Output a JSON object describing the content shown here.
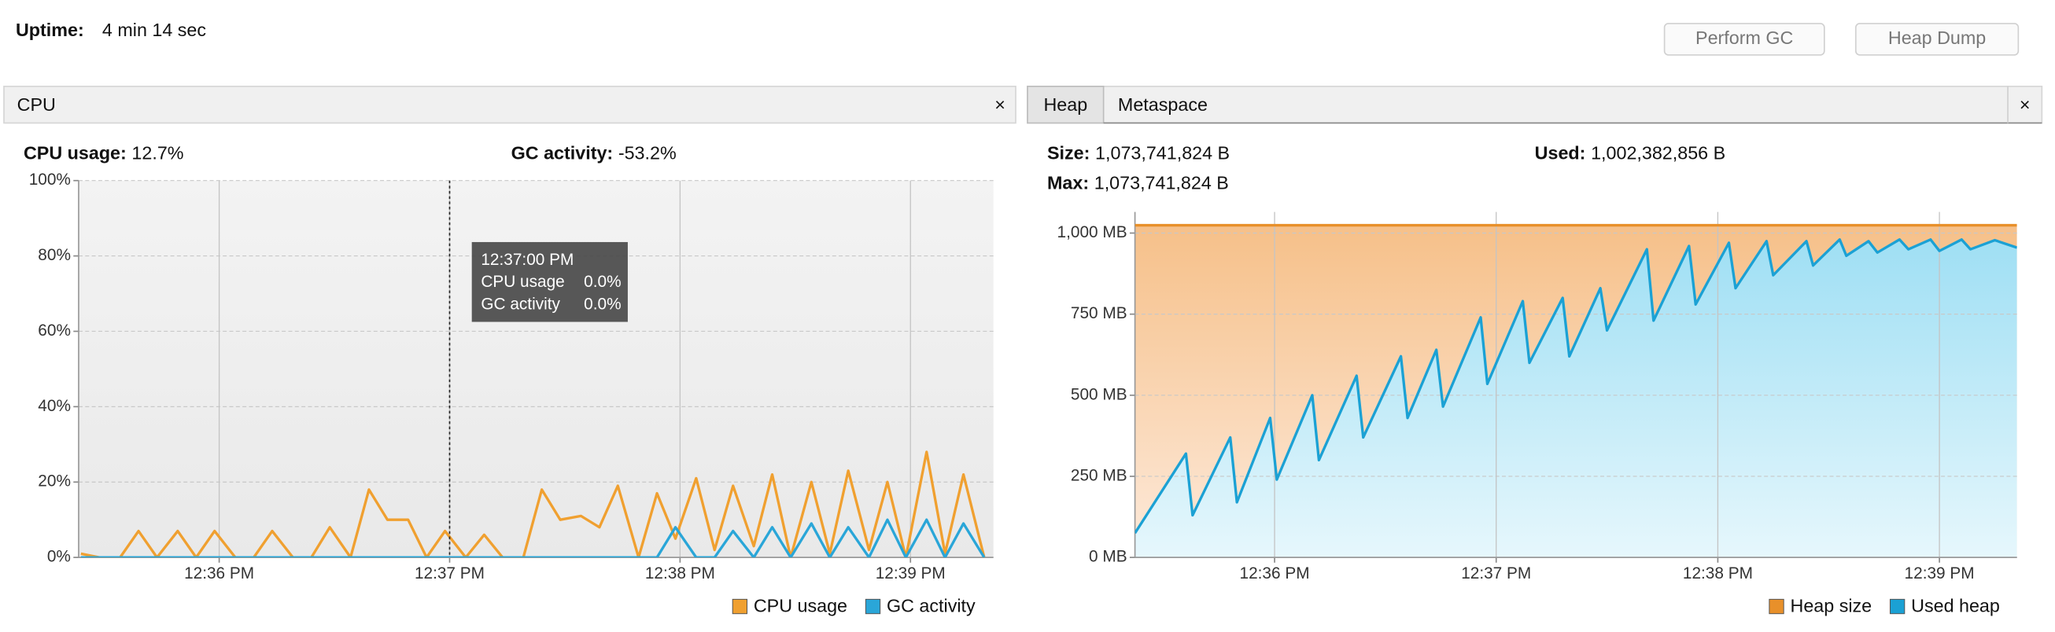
{
  "header": {
    "uptime_label": "Uptime:",
    "uptime_value": "4 min 14 sec",
    "buttons": [
      "Perform GC",
      "Heap Dump"
    ]
  },
  "cpu_panel": {
    "tab": "CPU",
    "close": "×",
    "usage_label": "CPU usage:",
    "usage_value": "12.7%",
    "gc_label": "GC activity:",
    "gc_value": "-53.2%",
    "tooltip": {
      "time": "12:37:00 PM",
      "rows": [
        [
          "CPU usage",
          "0.0%"
        ],
        [
          "GC activity",
          "0.0%"
        ]
      ]
    },
    "chart": {
      "type": "line",
      "cursor_x": 37,
      "xlim": [
        35.39,
        39.36
      ],
      "ylim": [
        0,
        100
      ],
      "xticks": [
        {
          "value": 36,
          "label": "12:36 PM"
        },
        {
          "value": 37,
          "label": "12:37 PM"
        },
        {
          "value": 38,
          "label": "12:38 PM"
        },
        {
          "value": 39,
          "label": "12:39 PM"
        }
      ],
      "yticks": [
        {
          "value": 0,
          "label": "0%"
        },
        {
          "value": 20,
          "label": "20%"
        },
        {
          "value": 40,
          "label": "40%"
        },
        {
          "value": 60,
          "label": "60%"
        },
        {
          "value": 80,
          "label": "80%"
        },
        {
          "value": 100,
          "label": "100%"
        }
      ],
      "grid": true,
      "x": [
        35.4,
        35.48,
        35.57,
        35.65,
        35.73,
        35.82,
        35.9,
        35.98,
        36.07,
        36.15,
        36.23,
        36.32,
        36.4,
        36.48,
        36.57,
        36.65,
        36.73,
        36.82,
        36.9,
        36.98,
        37.07,
        37.15,
        37.23,
        37.32,
        37.4,
        37.48,
        37.57,
        37.65,
        37.73,
        37.82,
        37.9,
        37.98,
        38.07,
        38.15,
        38.23,
        38.32,
        38.4,
        38.48,
        38.57,
        38.65,
        38.73,
        38.82,
        38.9,
        38.98,
        39.07,
        39.15,
        39.23,
        39.32
      ],
      "series": [
        {
          "name": "CPU usage",
          "color": "#f0a030",
          "values": [
            1,
            0,
            0,
            7,
            0,
            7,
            0,
            7,
            0,
            0,
            7,
            0,
            0,
            8,
            0,
            18,
            10,
            10,
            0,
            7,
            0,
            6,
            0,
            0,
            18,
            10,
            11,
            8,
            19,
            0,
            17,
            5,
            21,
            2,
            19,
            3,
            22,
            0,
            20,
            1,
            23,
            2,
            20,
            0,
            28,
            1,
            22,
            0
          ]
        },
        {
          "name": "GC activity",
          "color": "#2aa6d8",
          "values": [
            0,
            0,
            0,
            0,
            0,
            0,
            0,
            0,
            0,
            0,
            0,
            0,
            0,
            0,
            0,
            0,
            0,
            0,
            0,
            0,
            0,
            0,
            0,
            0,
            0,
            0,
            0,
            0,
            0,
            0,
            0,
            8,
            0,
            0,
            7,
            0,
            8,
            0,
            9,
            0,
            8,
            0,
            10,
            0,
            10,
            0,
            9,
            0
          ]
        }
      ]
    }
  },
  "heap_panel": {
    "tabs": [
      "Heap",
      "Metaspace"
    ],
    "close": "×",
    "size_label": "Size:",
    "size_value": "1,073,741,824 B",
    "used_label": "Used:",
    "used_value": "1,002,382,856 B",
    "max_label": "Max:",
    "max_value": "1,073,741,824 B",
    "chart": {
      "type": "area",
      "xlim": [
        35.37,
        39.35
      ],
      "ylim": [
        0,
        1065
      ],
      "xticks": [
        {
          "value": 36,
          "label": "12:36 PM"
        },
        {
          "value": 37,
          "label": "12:37 PM"
        },
        {
          "value": 38,
          "label": "12:38 PM"
        },
        {
          "value": 39,
          "label": "12:39 PM"
        }
      ],
      "yticks": [
        {
          "value": 0,
          "label": "0 MB"
        },
        {
          "value": 250,
          "label": "250 MB"
        },
        {
          "value": 500,
          "label": "500 MB"
        },
        {
          "value": 750,
          "label": "750 MB"
        },
        {
          "value": 1000,
          "label": "1,000 MB"
        }
      ],
      "grid": true,
      "series": [
        {
          "name": "Heap size",
          "color": "#e8902a",
          "fill": [
            "#f6c089",
            "#fdeadb"
          ],
          "x": [
            35.37,
            39.35
          ],
          "values": [
            1024,
            1024
          ]
        },
        {
          "name": "Used heap",
          "color": "#1ba1d4",
          "fill": [
            "#9fdff4",
            "#e6f7fc"
          ],
          "x": [
            35.37,
            35.6,
            35.63,
            35.8,
            35.83,
            35.98,
            36.01,
            36.17,
            36.2,
            36.37,
            36.4,
            36.57,
            36.6,
            36.73,
            36.76,
            36.93,
            36.96,
            37.12,
            37.15,
            37.3,
            37.33,
            37.47,
            37.5,
            37.68,
            37.71,
            37.87,
            37.9,
            38.05,
            38.08,
            38.22,
            38.25,
            38.4,
            38.43,
            38.55,
            38.58,
            38.68,
            38.72,
            38.82,
            38.86,
            38.96,
            39.0,
            39.1,
            39.14,
            39.25,
            39.35
          ],
          "values": [
            75,
            320,
            130,
            370,
            170,
            430,
            240,
            500,
            300,
            560,
            370,
            620,
            430,
            640,
            465,
            740,
            535,
            790,
            600,
            800,
            620,
            830,
            700,
            950,
            730,
            960,
            780,
            970,
            830,
            975,
            870,
            975,
            900,
            980,
            930,
            975,
            940,
            980,
            950,
            980,
            945,
            980,
            950,
            978,
            955
          ]
        }
      ]
    }
  }
}
